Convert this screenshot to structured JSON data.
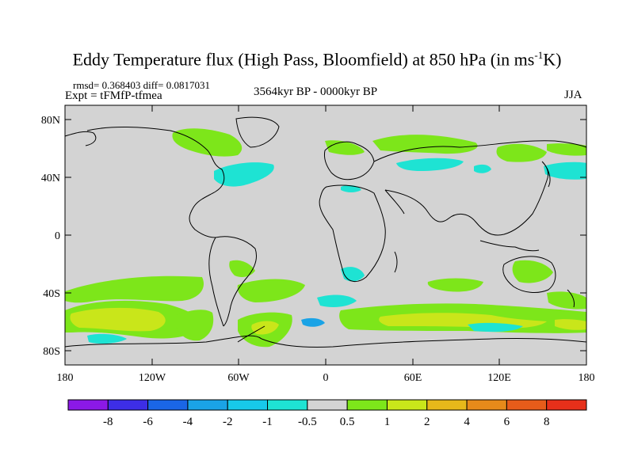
{
  "title": {
    "main": "Eddy Temperature flux (High Pass, Bloomfield) at 850 hPa (in ms",
    "sup": "-1",
    "tail": "K)"
  },
  "stats": {
    "rmsd": "rmsd= 0.368403 diff= 0.0817031"
  },
  "expt": "Expt = tFMfP-tfmea",
  "period": "3564kyr BP - 0000kyr BP",
  "season": "JJA",
  "map": {
    "projection": "cylindrical equidistant",
    "lat_labels": [
      "80N",
      "40N",
      "0",
      "40S",
      "80S"
    ],
    "lon_labels": [
      "180",
      "120W",
      "60W",
      "0",
      "60E",
      "120E",
      "180"
    ],
    "background_color": "#d3d3d3",
    "coastline_color": "#000000"
  },
  "colorbar": {
    "levels": [
      "-8",
      "-6",
      "-4",
      "-2",
      "-1",
      "-0.5",
      "0.5",
      "1",
      "2",
      "4",
      "6",
      "8"
    ],
    "colors": [
      "#8b19e6",
      "#3d2ee6",
      "#1a66e6",
      "#1aa3e6",
      "#17c9ea",
      "#1ee3d3",
      "#d3d3d3",
      "#7de61a",
      "#c9e61a",
      "#e6b81a",
      "#e68a1a",
      "#e65c1a",
      "#e6301a"
    ]
  }
}
